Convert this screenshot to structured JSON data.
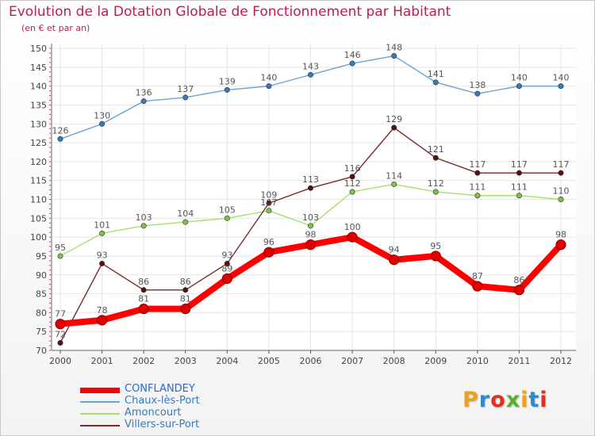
{
  "title": "Evolution de la Dotation Globale de Fonctionnement par Habitant",
  "subtitle": "(en € et par an)",
  "logo_text": "Proxiti",
  "logo_colors": [
    "#f0a020",
    "#2a8ad4",
    "#e03020",
    "#5cb030",
    "#f0a020",
    "#2a8ad4",
    "#e03020"
  ],
  "chart_data": {
    "type": "line",
    "title": "Evolution de la Dotation Globale de Fonctionnement par Habitant",
    "subtitle": "(en € et par an)",
    "x": [
      "2000",
      "2001",
      "2002",
      "2003",
      "2004",
      "2005",
      "2006",
      "2007",
      "2008",
      "2009",
      "2010",
      "2011",
      "2012"
    ],
    "ylim": [
      70,
      150
    ],
    "yticks": [
      70,
      75,
      80,
      85,
      90,
      95,
      100,
      105,
      110,
      115,
      120,
      125,
      130,
      135,
      140,
      145,
      150
    ],
    "grid": true,
    "legend_position": "bottom-left",
    "series": [
      {
        "name": "CONFLANDEY",
        "color": "#ff0000",
        "dot_color": "#7a0000",
        "label_color": "#555555",
        "thick": true,
        "values": [
          77,
          78,
          81,
          81,
          89,
          96,
          98,
          100,
          94,
          95,
          87,
          86,
          98
        ]
      },
      {
        "name": "Chaux-lès-Port",
        "color": "#6aa3d4",
        "dot_color": "#3a7ab8",
        "label_color": "#555555",
        "thick": false,
        "values": [
          126,
          130,
          136,
          137,
          139,
          140,
          143,
          146,
          148,
          141,
          138,
          140,
          140
        ]
      },
      {
        "name": "Amoncourt",
        "color": "#a8de6e",
        "dot_color": "#7ec04a",
        "label_color": "#555555",
        "thick": false,
        "values": [
          95,
          101,
          103,
          104,
          105,
          107,
          103,
          112,
          114,
          112,
          111,
          111,
          110
        ]
      },
      {
        "name": "Villers-sur-Port",
        "color": "#7a2a2a",
        "dot_color": "#5a1010",
        "label_color": "#555555",
        "thick": false,
        "values": [
          72,
          93,
          86,
          86,
          93,
          109,
          113,
          116,
          129,
          121,
          117,
          117,
          117
        ]
      }
    ]
  }
}
